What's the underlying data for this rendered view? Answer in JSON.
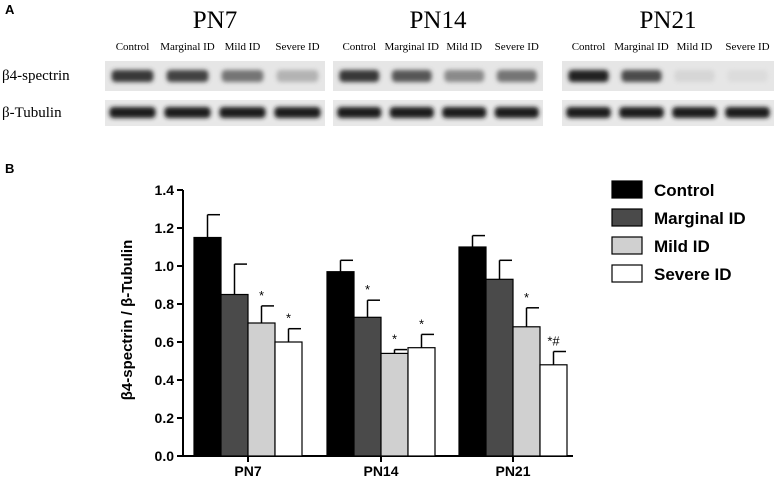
{
  "panel_a": {
    "letter": "A",
    "row_labels": [
      "β4-spectrin",
      "β-Tubulin"
    ],
    "groups": [
      {
        "age": "PN7",
        "lanes": [
          "Control",
          "Marginal ID",
          "Mild ID",
          "Severe ID"
        ],
        "beta4_intensity": [
          0.85,
          0.8,
          0.55,
          0.25
        ]
      },
      {
        "age": "PN14",
        "lanes": [
          "Control",
          "Marginal ID",
          "Mild ID",
          "Severe ID"
        ],
        "beta4_intensity": [
          0.85,
          0.7,
          0.45,
          0.55
        ]
      },
      {
        "age": "PN21",
        "lanes": [
          "Control",
          "Marginal ID",
          "Mild ID",
          "Severe ID"
        ],
        "beta4_intensity": [
          0.95,
          0.75,
          0.08,
          0.05
        ]
      }
    ]
  },
  "panel_b": {
    "letter": "B"
  },
  "chart_data": {
    "type": "bar",
    "categories": [
      "PN7",
      "PN14",
      "PN21"
    ],
    "ylabel": "β4-spectrin / β-Tubulin",
    "ylim": [
      0,
      1.4
    ],
    "yticks": [
      "0.0",
      "0.2",
      "0.4",
      "0.6",
      "0.8",
      "1.0",
      "1.2",
      "1.4"
    ],
    "grid": false,
    "legend_position": "top-right",
    "series": [
      {
        "name": "Control",
        "color": "#000000",
        "values": [
          1.15,
          0.97,
          1.1
        ],
        "errors": [
          0.12,
          0.06,
          0.06
        ],
        "annotations": [
          "",
          "",
          ""
        ]
      },
      {
        "name": "Marginal ID",
        "color": "#4a4a4a",
        "values": [
          0.85,
          0.73,
          0.93
        ],
        "errors": [
          0.16,
          0.09,
          0.1
        ],
        "annotations": [
          "",
          "*",
          ""
        ]
      },
      {
        "name": "Mild ID",
        "color": "#d0d0d0",
        "values": [
          0.7,
          0.54,
          0.68
        ],
        "errors": [
          0.09,
          0.02,
          0.1
        ],
        "annotations": [
          "*",
          "*",
          "*"
        ]
      },
      {
        "name": "Severe ID",
        "color": "#ffffff",
        "values": [
          0.6,
          0.57,
          0.48
        ],
        "errors": [
          0.07,
          0.07,
          0.07
        ],
        "annotations": [
          "*",
          "*",
          "*#"
        ]
      }
    ]
  }
}
